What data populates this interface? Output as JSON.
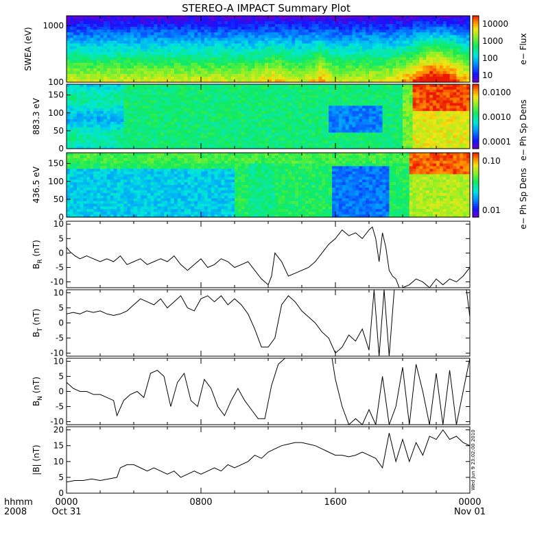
{
  "title": "STEREO-A IMPACT Summary Plot",
  "timestamp_vertical": "Wed Jun  9 23:02:00 2010",
  "footer": {
    "units_label": "hhmm",
    "year_label": "2008",
    "ticks": [
      {
        "hhmm": "0000",
        "date": "Oct 31"
      },
      {
        "hhmm": "0800",
        "date": ""
      },
      {
        "hhmm": "1600",
        "date": ""
      },
      {
        "hhmm": "0000",
        "date": "Nov 01"
      }
    ]
  },
  "chart_data": [
    {
      "type": "heatmap",
      "id": "swea",
      "ylabel": "SWEA (eV)",
      "ylim": [
        100,
        1500
      ],
      "yscale": "log",
      "yticks": [
        "1000",
        "100"
      ],
      "colorbar": {
        "label": "e− Flux",
        "scale": "log",
        "ticks": [
          "10000",
          "1000",
          "100",
          "10"
        ]
      },
      "description_features": [
        "enhanced flux near 100 eV from 18:00 to 24:00"
      ]
    },
    {
      "type": "heatmap",
      "id": "pad883",
      "ylabel": "883.3 eV",
      "ylim": [
        0,
        180
      ],
      "yticks": [
        "150",
        "100",
        "50",
        "0"
      ],
      "colorbar": {
        "label": "e− Ph Sp Dens",
        "scale": "log",
        "ticks": [
          "0.0100",
          "0.0010",
          "0.0001"
        ]
      }
    },
    {
      "type": "heatmap",
      "id": "pad436",
      "ylabel": "436.5 eV",
      "ylim": [
        0,
        180
      ],
      "yticks": [
        "150",
        "100",
        "50",
        "0"
      ],
      "colorbar": {
        "label": "e− Ph Sp Dens",
        "scale": "log",
        "ticks": [
          "0.10",
          "0.01"
        ]
      }
    },
    {
      "type": "line",
      "id": "br",
      "ylabel": "B",
      "ylabel_sub": "R",
      "ylabel_unit": "(nT)",
      "ylim": [
        -12,
        11
      ],
      "yticks": [
        "10",
        "5",
        "0",
        "-5",
        "-10"
      ],
      "xlim": [
        0,
        24
      ],
      "x": [
        0,
        0.2,
        0.5,
        0.8,
        1.2,
        1.6,
        2.0,
        2.4,
        2.8,
        3.2,
        3.6,
        4.0,
        4.4,
        4.8,
        5.2,
        5.6,
        6.0,
        6.4,
        6.8,
        7.2,
        7.6,
        8.0,
        8.4,
        8.8,
        9.2,
        9.6,
        10.0,
        10.4,
        10.8,
        11.2,
        11.6,
        12.0,
        12.2,
        12.4,
        12.8,
        13.2,
        13.6,
        14.0,
        14.4,
        14.8,
        15.2,
        15.6,
        16.0,
        16.4,
        16.8,
        17.2,
        17.6,
        18.0,
        18.2,
        18.4,
        18.6,
        18.8,
        19.0,
        19.2,
        19.4,
        19.6,
        19.8,
        20.0,
        20.4,
        20.8,
        21.2,
        21.6,
        22.0,
        22.4,
        22.8,
        23.2,
        23.6,
        24.0
      ],
      "y": [
        2,
        0.5,
        -1,
        -2,
        -1,
        -2,
        -3,
        -2,
        -3,
        -1,
        -4,
        -3,
        -2,
        -4,
        -3,
        -2,
        -3,
        -1,
        -4,
        -6,
        -4,
        -2,
        -5,
        -4,
        -2,
        -3,
        -5,
        -4,
        -3,
        -6,
        -9,
        -11,
        -8,
        0,
        -3,
        -8,
        -7,
        -6,
        -5,
        -3,
        0,
        3,
        5,
        8,
        6,
        7,
        5,
        8,
        9,
        5,
        -3,
        7,
        2,
        -6,
        -8,
        -9,
        -12,
        -12,
        -11,
        -9,
        -10,
        -12,
        -9,
        -11,
        -9,
        -10,
        -8,
        -5
      ]
    },
    {
      "type": "line",
      "id": "bt",
      "ylabel": "B",
      "ylabel_sub": "T",
      "ylabel_unit": "(nT)",
      "ylim": [
        -11,
        11
      ],
      "yticks": [
        "10",
        "5",
        "0",
        "-5",
        "-10"
      ],
      "xlim": [
        0,
        24
      ],
      "x": [
        0,
        0.4,
        0.8,
        1.2,
        1.6,
        2.0,
        2.4,
        2.8,
        3.2,
        3.6,
        4.0,
        4.4,
        4.8,
        5.2,
        5.6,
        6.0,
        6.4,
        6.8,
        7.2,
        7.6,
        8.0,
        8.4,
        8.8,
        9.2,
        9.6,
        10.0,
        10.4,
        10.8,
        11.2,
        11.6,
        12.0,
        12.4,
        12.8,
        13.2,
        13.6,
        14.0,
        14.4,
        14.8,
        15.2,
        15.6,
        16.0,
        16.4,
        16.8,
        17.2,
        17.6,
        18.0,
        18.3,
        18.6,
        18.9,
        19.2,
        19.5,
        19.8,
        20.2,
        20.6,
        21.0,
        21.4,
        21.8,
        22.2,
        22.6,
        23.0,
        23.4,
        23.8,
        24.0
      ],
      "y": [
        3,
        3.5,
        3,
        4,
        3.5,
        4,
        3,
        2.5,
        3,
        4,
        6,
        8,
        7,
        6,
        8,
        5,
        7,
        9,
        5,
        4,
        8,
        9,
        7,
        9,
        6,
        8,
        6,
        3,
        -2,
        -8,
        -8,
        -5,
        6,
        9,
        7,
        4,
        2,
        0,
        -3,
        -5,
        -10,
        -8,
        -4,
        -6,
        -2,
        -9,
        11,
        -11,
        11,
        -11,
        11,
        11,
        11,
        11,
        11,
        11,
        11,
        11,
        11,
        11,
        11,
        11,
        2
      ]
    },
    {
      "type": "line",
      "id": "bn",
      "ylabel": "B",
      "ylabel_sub": "N",
      "ylabel_unit": "(nT)",
      "ylim": [
        -11,
        11
      ],
      "yticks": [
        "10",
        "5",
        "0",
        "-5",
        "-10"
      ],
      "xlim": [
        0,
        24
      ],
      "x": [
        0,
        0.4,
        0.8,
        1.2,
        1.6,
        2.0,
        2.4,
        2.8,
        3.0,
        3.4,
        3.8,
        4.2,
        4.6,
        5.0,
        5.4,
        5.8,
        6.2,
        6.6,
        7.0,
        7.4,
        7.8,
        8.2,
        8.6,
        9.0,
        9.4,
        9.8,
        10.2,
        10.6,
        11.0,
        11.4,
        11.8,
        12.2,
        12.6,
        13.0,
        13.4,
        13.8,
        14.2,
        14.6,
        15.0,
        15.4,
        15.8,
        16.0,
        16.4,
        16.8,
        17.2,
        17.6,
        18.0,
        18.4,
        18.8,
        19.2,
        19.6,
        20.0,
        20.4,
        20.8,
        21.2,
        21.6,
        22.0,
        22.4,
        22.8,
        23.2,
        23.6,
        24.0
      ],
      "y": [
        3,
        1,
        0,
        0,
        -1,
        -1,
        -2,
        -3,
        -8,
        -3,
        -1,
        0,
        -2,
        6,
        7,
        5,
        -5,
        3,
        6,
        -3,
        -5,
        4,
        1,
        -5,
        -8,
        -3,
        1,
        -3,
        -6,
        -9,
        -9,
        2,
        9,
        11,
        11,
        11,
        11,
        11,
        11,
        11,
        11,
        4,
        -5,
        -11,
        -9,
        -11,
        -6,
        -11,
        5,
        -11,
        -5,
        8,
        -11,
        9,
        0,
        -11,
        6,
        -11,
        7,
        -11,
        0,
        11
      ]
    },
    {
      "type": "line",
      "id": "bmag",
      "ylabel": "|B| (nT)",
      "ylim": [
        0,
        21
      ],
      "yticks": [
        "20",
        "15",
        "10",
        "5",
        "0"
      ],
      "xlim": [
        0,
        24
      ],
      "x": [
        0,
        0.5,
        1.0,
        1.5,
        2.0,
        2.5,
        3.0,
        3.2,
        3.6,
        4.0,
        4.4,
        4.8,
        5.2,
        5.6,
        6.0,
        6.4,
        6.8,
        7.2,
        7.6,
        8.0,
        8.4,
        8.8,
        9.2,
        9.6,
        10.0,
        10.4,
        10.8,
        11.2,
        11.6,
        12.0,
        12.4,
        12.8,
        13.2,
        13.6,
        14.0,
        14.4,
        14.8,
        15.2,
        15.6,
        16.0,
        16.4,
        16.8,
        17.2,
        17.6,
        18.0,
        18.4,
        18.8,
        19.2,
        19.6,
        20.0,
        20.4,
        20.8,
        21.2,
        21.6,
        22.0,
        22.4,
        22.8,
        23.2,
        23.6,
        24.0
      ],
      "y": [
        3.5,
        4,
        4,
        4.5,
        4,
        4.5,
        5,
        8,
        9,
        9,
        8,
        7,
        8,
        7,
        6,
        7,
        5,
        6,
        7,
        6,
        7,
        8,
        7,
        9,
        8,
        9,
        10,
        12,
        11,
        13,
        14,
        15,
        15.5,
        16,
        16,
        15.5,
        15,
        14,
        13,
        12,
        12,
        11.5,
        12,
        13,
        12,
        11,
        8,
        19,
        10,
        17,
        10,
        16,
        12,
        18,
        17,
        20,
        17,
        18,
        16,
        15
      ]
    }
  ]
}
